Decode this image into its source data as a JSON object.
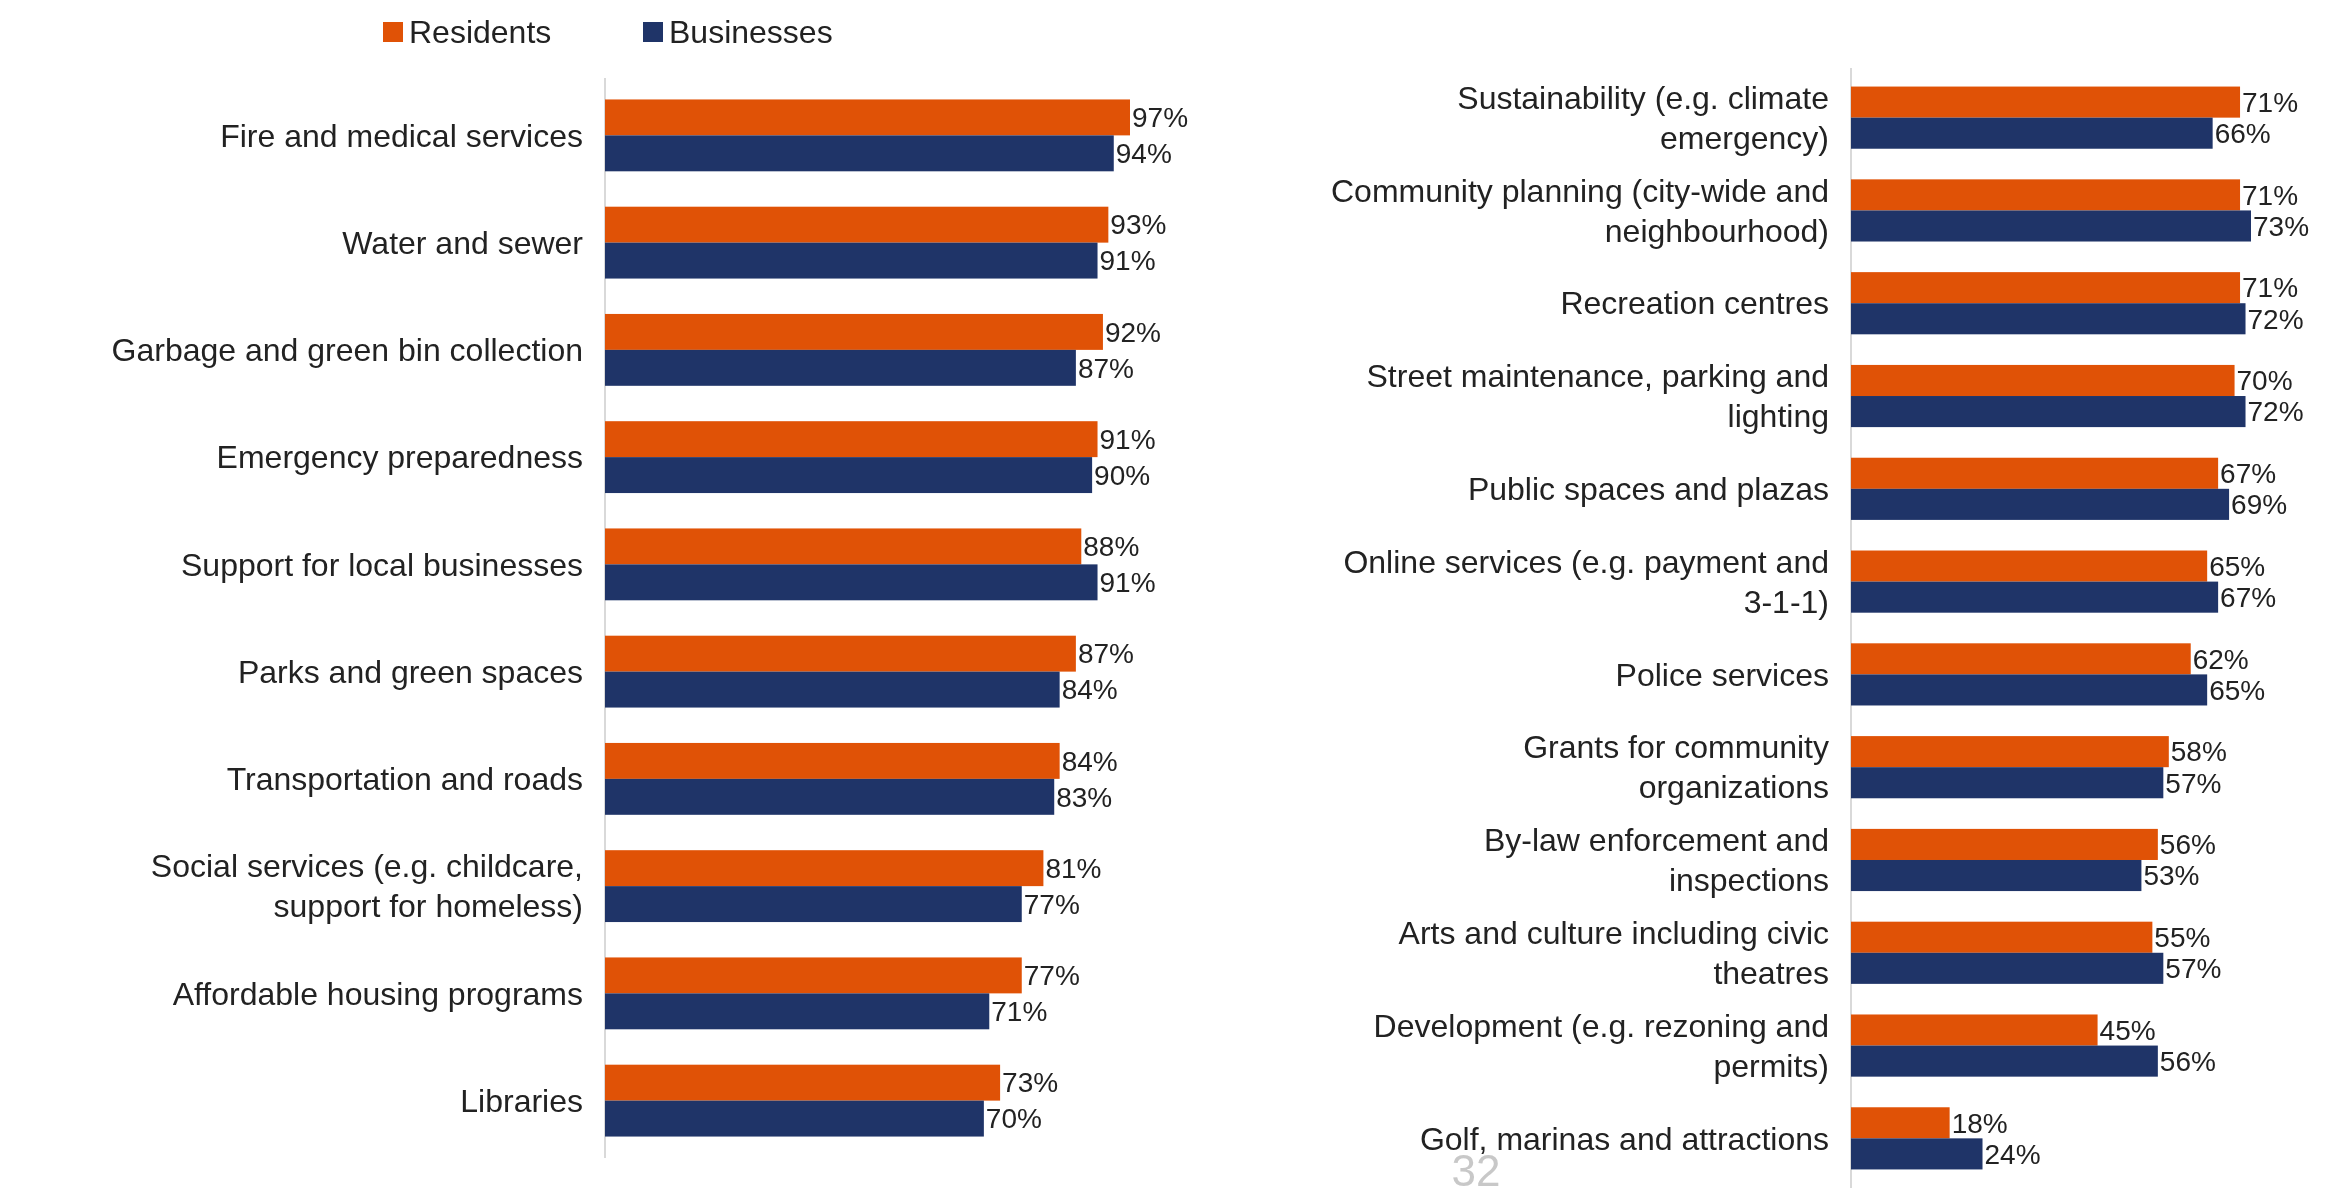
{
  "chart_data": [
    {
      "type": "bar",
      "orientation": "horizontal",
      "categories": [
        "Fire and medical services",
        "Water and sewer",
        "Garbage and green bin collection",
        "Emergency preparedness",
        "Support for local businesses",
        "Parks and green spaces",
        "Transportation and roads",
        "Social services (e.g. childcare, support for homeless)",
        "Affordable housing programs",
        "Libraries"
      ],
      "series": [
        {
          "name": "Residents",
          "color": "#e05206",
          "values": [
            97,
            93,
            92,
            91,
            88,
            87,
            84,
            81,
            77,
            73
          ],
          "value_labels": [
            "97%",
            "93%",
            "92%",
            "91%",
            "88%",
            "87%",
            "84%",
            "81%",
            "77%",
            "73%"
          ]
        },
        {
          "name": "Businesses",
          "color": "#1f3468",
          "values": [
            94,
            91,
            87,
            90,
            91,
            84,
            83,
            77,
            71,
            70
          ],
          "value_labels": [
            "94%",
            "91%",
            "87%",
            "90%",
            "91%",
            "84%",
            "83%",
            "77%",
            "71%",
            "70%"
          ]
        }
      ],
      "tick_labels": false,
      "legend": "top left"
    },
    {
      "type": "bar",
      "orientation": "horizontal",
      "categories": [
        "Sustainability (e.g. climate emergency)",
        "Community planning (city-wide and neighbourhood)",
        "Recreation centres",
        "Street maintenance, parking and lighting",
        "Public spaces and plazas",
        "Online services (e.g. payment and 3-1-1)",
        "Police services",
        "Grants for community organizations",
        "By-law enforcement and inspections",
        "Arts and culture including civic theatres",
        "Development (e.g. rezoning and permits)",
        "Golf, marinas and attractions"
      ],
      "series": [
        {
          "color": "#e05206",
          "values": [
            71,
            71,
            71,
            70,
            67,
            65,
            62,
            58,
            56,
            55,
            45,
            18
          ],
          "value_labels": [
            "71%",
            "71%",
            "71%",
            "70%",
            "67%",
            "65%",
            "62%",
            "58%",
            "56%",
            "55%",
            "45%",
            "18%"
          ]
        },
        {
          "color": "#1f3468",
          "values": [
            66,
            73,
            72,
            72,
            69,
            67,
            65,
            57,
            53,
            57,
            56,
            24
          ],
          "value_labels": [
            "66%",
            "73%",
            "72%",
            "72%",
            "69%",
            "67%",
            "65%",
            "57%",
            "53%",
            "57%",
            "56%",
            "24%"
          ]
        }
      ],
      "tick_labels": false,
      "annotations": [
        "32"
      ]
    }
  ]
}
